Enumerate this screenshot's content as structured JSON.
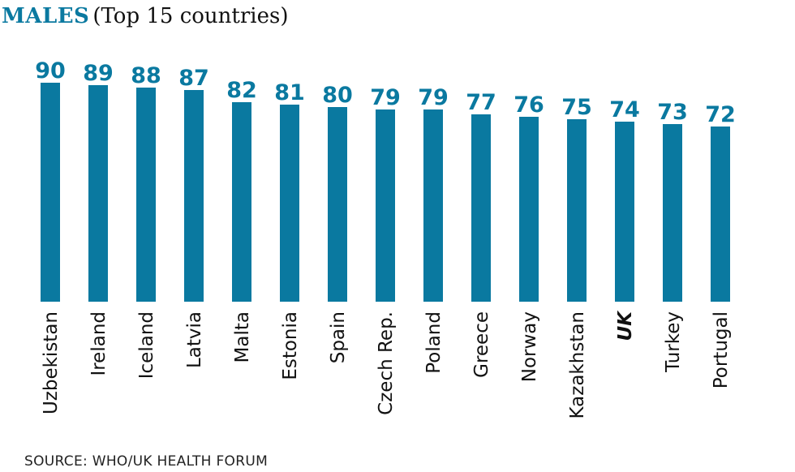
{
  "chart_data": {
    "type": "bar",
    "title": "MALES",
    "subtitle": "(Top 15 countries)",
    "categories": [
      "Uzbekistan",
      "Ireland",
      "Iceland",
      "Latvia",
      "Malta",
      "Estonia",
      "Spain",
      "Czech Rep.",
      "Poland",
      "Greece",
      "Norway",
      "Kazakhstan",
      "UK",
      "Turkey",
      "Portugal"
    ],
    "values": [
      90,
      89,
      88,
      87,
      82,
      81,
      80,
      79,
      79,
      77,
      76,
      75,
      74,
      73,
      72
    ],
    "highlight_category": "UK",
    "bar_color": "#0a79a0",
    "label_color": "#0a79a0",
    "source": "SOURCE: WHO/UK HEALTH FORUM"
  }
}
